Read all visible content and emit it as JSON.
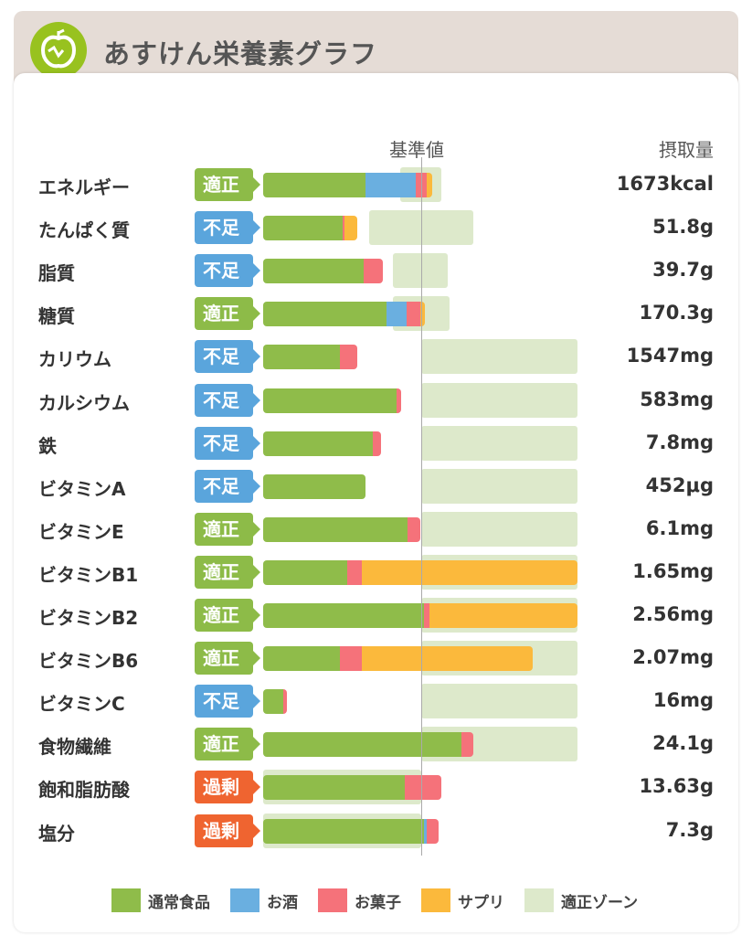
{
  "header": {
    "title": "あすけん栄養素グラフ"
  },
  "colors": {
    "food": "#8fbc4a",
    "alcohol": "#6aafe0",
    "snack": "#f5727a",
    "supplement": "#fbb93c",
    "zone": "#dde9cb",
    "適正": "#8dbb48",
    "不足": "#5aa5dc",
    "過剰": "#ef6430"
  },
  "chart_data": {
    "type": "bar",
    "stacked": true,
    "orientation": "horizontal",
    "units": "percent of standard value (基準値 = 100)",
    "reference_label": "基準値",
    "value_header": "摂取量",
    "series_names": [
      "通常食品",
      "お酒",
      "お菓子",
      "サプリ"
    ],
    "legend": [
      "通常食品",
      "お酒",
      "お菓子",
      "サプリ",
      "適正ゾーン"
    ],
    "rows": [
      {
        "name": "エネルギー",
        "status": "適正",
        "value": "1673kcal",
        "segments": [
          64.7,
          31.8,
          6.9,
          3.5
        ],
        "zone": [
          86.7,
          112.7
        ]
      },
      {
        "name": "たんぱく質",
        "status": "不足",
        "value": "51.8g",
        "segments": [
          50.3,
          0,
          1.2,
          8.1
        ],
        "zone": [
          67,
          133
        ]
      },
      {
        "name": "脂質",
        "status": "不足",
        "value": "39.7g",
        "segments": [
          63.6,
          0,
          12.1,
          0
        ],
        "zone": [
          82,
          117
        ]
      },
      {
        "name": "糖質",
        "status": "適正",
        "value": "170.3g",
        "segments": [
          78,
          12.7,
          8.7,
          2.9
        ],
        "zone": [
          82,
          118
        ]
      },
      {
        "name": "カリウム",
        "status": "不足",
        "value": "1547mg",
        "segments": [
          48.6,
          0,
          11,
          0
        ],
        "zone": [
          100,
          199
        ]
      },
      {
        "name": "カルシウム",
        "status": "不足",
        "value": "583mg",
        "segments": [
          84.4,
          0,
          2.9,
          0
        ],
        "zone": [
          100,
          199
        ]
      },
      {
        "name": "鉄",
        "status": "不足",
        "value": "7.8mg",
        "segments": [
          69.4,
          0,
          5.2,
          0
        ],
        "zone": [
          100,
          199
        ]
      },
      {
        "name": "ビタミンA",
        "status": "不足",
        "value": "452μg",
        "segments": [
          64.7,
          0,
          0,
          0
        ],
        "zone": [
          100,
          199
        ]
      },
      {
        "name": "ビタミンE",
        "status": "適正",
        "value": "6.1mg",
        "segments": [
          91.3,
          0,
          8.1,
          0
        ],
        "zone": [
          100,
          199
        ]
      },
      {
        "name": "ビタミンB1",
        "status": "適正",
        "value": "1.65mg",
        "segments": [
          53.2,
          0,
          9.2,
          136.4
        ],
        "zone": [
          100,
          199
        ]
      },
      {
        "name": "ビタミンB2",
        "status": "適正",
        "value": "2.56mg",
        "segments": [
          101.7,
          0,
          3.5,
          93.6
        ],
        "zone": [
          100,
          199
        ]
      },
      {
        "name": "ビタミンB6",
        "status": "適正",
        "value": "2.07mg",
        "segments": [
          48.6,
          0,
          13.9,
          108.1
        ],
        "zone": [
          100,
          199
        ]
      },
      {
        "name": "ビタミンC",
        "status": "不足",
        "value": "16mg",
        "segments": [
          12.7,
          0,
          2.3,
          0
        ],
        "zone": [
          100,
          199
        ]
      },
      {
        "name": "食物繊維",
        "status": "適正",
        "value": "24.1g",
        "segments": [
          125.4,
          0,
          7.5,
          0
        ],
        "zone": [
          100,
          199
        ]
      },
      {
        "name": "飽和脂肪酸",
        "status": "過剰",
        "value": "13.63g",
        "segments": [
          89.6,
          0,
          23.1,
          0
        ],
        "zone": [
          0,
          100
        ]
      },
      {
        "name": "塩分",
        "status": "過剰",
        "value": "7.3g",
        "segments": [
          101.7,
          1.7,
          7.5,
          0
        ],
        "zone": [
          0,
          100
        ]
      }
    ]
  }
}
